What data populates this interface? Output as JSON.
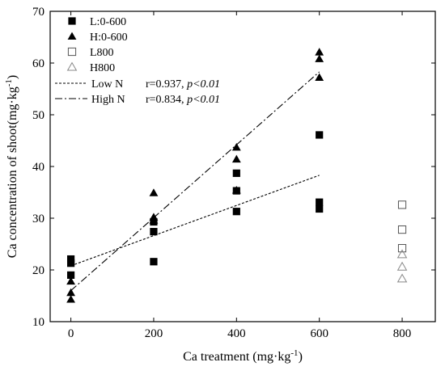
{
  "chart_data": {
    "type": "scatter",
    "title": "",
    "xlabel": "Ca treatment (mg·kg",
    "xlabel_sup": "-1",
    "xlabel_tail": ")",
    "ylabel": "Ca concentration of shoot(mg·kg",
    "ylabel_sup": "-1",
    "ylabel_tail": ")",
    "xlim": [
      -50,
      880
    ],
    "ylim": [
      10,
      70
    ],
    "x_ticks": [
      0,
      200,
      400,
      600,
      800
    ],
    "y_ticks": [
      10,
      20,
      30,
      40,
      50,
      60,
      70
    ],
    "x_tick_labels": [
      "0",
      "200",
      "400",
      "600",
      "800"
    ],
    "y_tick_labels": [
      "10",
      "20",
      "30",
      "40",
      "50",
      "60",
      "70"
    ],
    "legend_position": "top-left",
    "series": [
      {
        "name": "L:0-600",
        "marker": "filled-square",
        "color": "#000000",
        "points": [
          [
            0,
            22.1
          ],
          [
            0,
            21.3
          ],
          [
            0,
            19.0
          ],
          [
            200,
            29.3
          ],
          [
            200,
            27.4
          ],
          [
            200,
            21.6
          ],
          [
            400,
            38.7
          ],
          [
            400,
            35.3
          ],
          [
            400,
            31.3
          ],
          [
            600,
            46.1
          ],
          [
            600,
            33.1
          ],
          [
            600,
            31.8
          ]
        ]
      },
      {
        "name": "H:0-600",
        "marker": "filled-triangle",
        "color": "#000000",
        "points": [
          [
            0,
            17.8
          ],
          [
            0,
            15.6
          ],
          [
            0,
            14.3
          ],
          [
            200,
            34.9
          ],
          [
            200,
            30.2
          ],
          [
            200,
            29.6
          ],
          [
            400,
            43.7
          ],
          [
            400,
            41.4
          ],
          [
            400,
            35.4
          ],
          [
            600,
            62.1
          ],
          [
            600,
            60.8
          ],
          [
            600,
            57.2
          ]
        ]
      },
      {
        "name": "L800",
        "marker": "open-square",
        "color": "#555555",
        "points": [
          [
            800,
            32.6
          ],
          [
            800,
            27.8
          ],
          [
            800,
            24.2
          ]
        ]
      },
      {
        "name": "H800",
        "marker": "open-triangle",
        "color": "#888888",
        "points": [
          [
            800,
            23.0
          ],
          [
            800,
            20.6
          ],
          [
            800,
            18.3
          ]
        ]
      }
    ],
    "fit_lines": [
      {
        "name": "Low N",
        "style": "dotted",
        "label": "Low N",
        "stat_plain": "r=0.937, ",
        "stat_italic": "p<0.01",
        "x": [
          0,
          600
        ],
        "y": [
          20.8,
          38.3
        ]
      },
      {
        "name": "High N",
        "style": "dash-dot",
        "label": "High N",
        "stat_plain": "r=0.834, ",
        "stat_italic": "p<0.01",
        "x": [
          0,
          600
        ],
        "y": [
          16.0,
          58.3
        ]
      }
    ]
  }
}
